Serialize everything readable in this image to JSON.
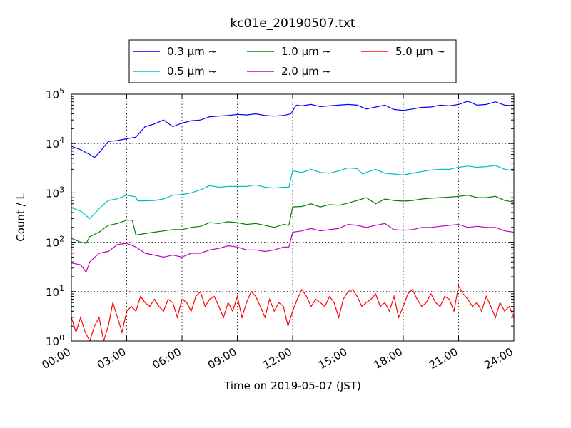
{
  "chart_data": {
    "type": "line",
    "title": "kc01e_20190507.txt",
    "xlabel": "Time on 2019-05-07 (JST)",
    "ylabel": "Count / L",
    "xlim_hours": [
      0,
      24
    ],
    "yscale": "log",
    "ylim": [
      1,
      100000
    ],
    "grid": true,
    "legend_placement": "top-center-above-plot",
    "x_ticks": [
      {
        "hour": 0,
        "label": "00:00"
      },
      {
        "hour": 3,
        "label": "03:00"
      },
      {
        "hour": 6,
        "label": "06:00"
      },
      {
        "hour": 9,
        "label": "09:00"
      },
      {
        "hour": 12,
        "label": "12:00"
      },
      {
        "hour": 15,
        "label": "15:00"
      },
      {
        "hour": 18,
        "label": "18:00"
      },
      {
        "hour": 21,
        "label": "21:00"
      },
      {
        "hour": 24,
        "label": "24:00"
      }
    ],
    "y_ticks": [
      {
        "value": 1,
        "base": "10",
        "exp": "0"
      },
      {
        "value": 10,
        "base": "10",
        "exp": "1"
      },
      {
        "value": 100,
        "base": "10",
        "exp": "2"
      },
      {
        "value": 1000,
        "base": "10",
        "exp": "3"
      },
      {
        "value": 10000,
        "base": "10",
        "exp": "4"
      },
      {
        "value": 100000,
        "base": "10",
        "exp": "5"
      }
    ],
    "series": [
      {
        "name": "0.3 μm ~",
        "color": "#0000ff",
        "points": [
          [
            0,
            8800
          ],
          [
            0.5,
            7500
          ],
          [
            1,
            6000
          ],
          [
            1.25,
            5200
          ],
          [
            1.5,
            6500
          ],
          [
            2,
            11000
          ],
          [
            2.5,
            11500
          ],
          [
            3,
            12500
          ],
          [
            3.5,
            13500
          ],
          [
            4,
            22000
          ],
          [
            4.5,
            25000
          ],
          [
            5,
            30000
          ],
          [
            5.5,
            22000
          ],
          [
            6,
            26000
          ],
          [
            6.5,
            29000
          ],
          [
            7,
            30000
          ],
          [
            7.5,
            35000
          ],
          [
            8,
            36000
          ],
          [
            8.5,
            37000
          ],
          [
            9,
            39000
          ],
          [
            9.5,
            38000
          ],
          [
            10,
            40000
          ],
          [
            10.5,
            37000
          ],
          [
            11,
            36000
          ],
          [
            11.5,
            37000
          ],
          [
            11.9,
            40000
          ],
          [
            12.2,
            60000
          ],
          [
            12.5,
            58000
          ],
          [
            13,
            62000
          ],
          [
            13.5,
            56000
          ],
          [
            14,
            58000
          ],
          [
            14.5,
            60000
          ],
          [
            15,
            62000
          ],
          [
            15.5,
            60000
          ],
          [
            16,
            50000
          ],
          [
            16.5,
            55000
          ],
          [
            17,
            60000
          ],
          [
            17.5,
            49000
          ],
          [
            18,
            47000
          ],
          [
            18.5,
            50000
          ],
          [
            19,
            54000
          ],
          [
            19.5,
            55000
          ],
          [
            20,
            60000
          ],
          [
            20.5,
            58000
          ],
          [
            21,
            62000
          ],
          [
            21.5,
            72000
          ],
          [
            22,
            60000
          ],
          [
            22.5,
            62000
          ],
          [
            23,
            70000
          ],
          [
            23.5,
            60000
          ],
          [
            24,
            58000
          ]
        ]
      },
      {
        "name": "0.5 μm ~",
        "color": "#00bfbf",
        "points": [
          [
            0,
            500
          ],
          [
            0.5,
            430
          ],
          [
            1,
            300
          ],
          [
            1.5,
            480
          ],
          [
            2,
            700
          ],
          [
            2.5,
            760
          ],
          [
            3,
            900
          ],
          [
            3.5,
            830
          ],
          [
            3.6,
            690
          ],
          [
            4,
            690
          ],
          [
            4.5,
            700
          ],
          [
            5,
            750
          ],
          [
            5.5,
            900
          ],
          [
            6,
            920
          ],
          [
            6.5,
            1000
          ],
          [
            7,
            1150
          ],
          [
            7.5,
            1400
          ],
          [
            8,
            1300
          ],
          [
            8.5,
            1350
          ],
          [
            9,
            1350
          ],
          [
            9.5,
            1350
          ],
          [
            10,
            1450
          ],
          [
            10.5,
            1300
          ],
          [
            11,
            1250
          ],
          [
            11.5,
            1300
          ],
          [
            11.8,
            1300
          ],
          [
            12,
            2800
          ],
          [
            12.5,
            2600
          ],
          [
            13,
            3000
          ],
          [
            13.5,
            2600
          ],
          [
            14,
            2500
          ],
          [
            14.5,
            2800
          ],
          [
            15,
            3200
          ],
          [
            15.5,
            3100
          ],
          [
            15.8,
            2400
          ],
          [
            16,
            2600
          ],
          [
            16.5,
            3000
          ],
          [
            17,
            2500
          ],
          [
            17.5,
            2400
          ],
          [
            18,
            2300
          ],
          [
            18.5,
            2500
          ],
          [
            19,
            2700
          ],
          [
            19.5,
            2900
          ],
          [
            20,
            3000
          ],
          [
            20.5,
            3000
          ],
          [
            21,
            3300
          ],
          [
            21.5,
            3500
          ],
          [
            22,
            3300
          ],
          [
            22.5,
            3400
          ],
          [
            23,
            3600
          ],
          [
            23.5,
            3000
          ],
          [
            24,
            2800
          ]
        ]
      },
      {
        "name": "1.0 μm ~",
        "color": "#008000",
        "points": [
          [
            0,
            120
          ],
          [
            0.5,
            100
          ],
          [
            0.8,
            95
          ],
          [
            1,
            130
          ],
          [
            1.5,
            160
          ],
          [
            2,
            220
          ],
          [
            2.5,
            240
          ],
          [
            3,
            280
          ],
          [
            3.3,
            280
          ],
          [
            3.5,
            140
          ],
          [
            4,
            150
          ],
          [
            4.5,
            160
          ],
          [
            5,
            170
          ],
          [
            5.5,
            180
          ],
          [
            6,
            180
          ],
          [
            6.5,
            200
          ],
          [
            7,
            210
          ],
          [
            7.5,
            250
          ],
          [
            8,
            240
          ],
          [
            8.5,
            260
          ],
          [
            9,
            250
          ],
          [
            9.5,
            230
          ],
          [
            10,
            240
          ],
          [
            10.5,
            220
          ],
          [
            11,
            200
          ],
          [
            11.5,
            230
          ],
          [
            11.8,
            220
          ],
          [
            12,
            520
          ],
          [
            12.5,
            530
          ],
          [
            13,
            600
          ],
          [
            13.5,
            520
          ],
          [
            14,
            580
          ],
          [
            14.5,
            560
          ],
          [
            15,
            620
          ],
          [
            15.5,
            700
          ],
          [
            16,
            800
          ],
          [
            16.5,
            600
          ],
          [
            17,
            750
          ],
          [
            17.5,
            700
          ],
          [
            18,
            680
          ],
          [
            18.5,
            700
          ],
          [
            19,
            750
          ],
          [
            19.5,
            780
          ],
          [
            20,
            800
          ],
          [
            20.5,
            820
          ],
          [
            21,
            850
          ],
          [
            21.5,
            900
          ],
          [
            22,
            800
          ],
          [
            22.5,
            800
          ],
          [
            23,
            850
          ],
          [
            23.5,
            700
          ],
          [
            24,
            650
          ]
        ]
      },
      {
        "name": "2.0 μm ~",
        "color": "#bf00bf",
        "points": [
          [
            0,
            38
          ],
          [
            0.5,
            35
          ],
          [
            0.8,
            25
          ],
          [
            1,
            40
          ],
          [
            1.5,
            60
          ],
          [
            2,
            65
          ],
          [
            2.5,
            90
          ],
          [
            3,
            95
          ],
          [
            3.5,
            80
          ],
          [
            4,
            60
          ],
          [
            4.5,
            55
          ],
          [
            5,
            50
          ],
          [
            5.5,
            55
          ],
          [
            6,
            50
          ],
          [
            6.5,
            60
          ],
          [
            7,
            60
          ],
          [
            7.5,
            70
          ],
          [
            8,
            75
          ],
          [
            8.5,
            85
          ],
          [
            9,
            80
          ],
          [
            9.5,
            70
          ],
          [
            10,
            70
          ],
          [
            10.5,
            65
          ],
          [
            11,
            70
          ],
          [
            11.5,
            80
          ],
          [
            11.8,
            80
          ],
          [
            12,
            160
          ],
          [
            12.5,
            170
          ],
          [
            13,
            190
          ],
          [
            13.5,
            170
          ],
          [
            14,
            180
          ],
          [
            14.5,
            190
          ],
          [
            15,
            230
          ],
          [
            15.5,
            220
          ],
          [
            16,
            200
          ],
          [
            16.5,
            220
          ],
          [
            17,
            240
          ],
          [
            17.5,
            180
          ],
          [
            18,
            175
          ],
          [
            18.5,
            180
          ],
          [
            19,
            200
          ],
          [
            19.5,
            200
          ],
          [
            20,
            210
          ],
          [
            20.5,
            220
          ],
          [
            21,
            230
          ],
          [
            21.5,
            200
          ],
          [
            22,
            210
          ],
          [
            22.5,
            200
          ],
          [
            23,
            200
          ],
          [
            23.5,
            170
          ],
          [
            24,
            160
          ]
        ]
      },
      {
        "name": "5.0 μm ~",
        "color": "#ff0000",
        "points": [
          [
            0,
            3
          ],
          [
            0.25,
            1.5
          ],
          [
            0.5,
            3
          ],
          [
            0.75,
            1.5
          ],
          [
            1,
            1
          ],
          [
            1.25,
            2
          ],
          [
            1.5,
            3
          ],
          [
            1.75,
            1
          ],
          [
            2,
            2
          ],
          [
            2.25,
            6
          ],
          [
            2.5,
            3
          ],
          [
            2.75,
            1.5
          ],
          [
            3,
            4
          ],
          [
            3.25,
            5
          ],
          [
            3.5,
            4
          ],
          [
            3.75,
            8
          ],
          [
            4,
            6
          ],
          [
            4.25,
            5
          ],
          [
            4.5,
            7
          ],
          [
            4.75,
            5
          ],
          [
            5,
            4
          ],
          [
            5.25,
            7
          ],
          [
            5.5,
            6
          ],
          [
            5.75,
            3
          ],
          [
            6,
            7
          ],
          [
            6.25,
            6
          ],
          [
            6.5,
            4
          ],
          [
            6.75,
            8
          ],
          [
            7,
            10
          ],
          [
            7.25,
            5
          ],
          [
            7.5,
            7
          ],
          [
            7.75,
            8
          ],
          [
            8,
            5
          ],
          [
            8.25,
            3
          ],
          [
            8.5,
            6
          ],
          [
            8.75,
            4
          ],
          [
            9,
            8
          ],
          [
            9.25,
            3
          ],
          [
            9.5,
            6
          ],
          [
            9.75,
            10
          ],
          [
            10,
            8
          ],
          [
            10.25,
            5
          ],
          [
            10.5,
            3
          ],
          [
            10.75,
            7
          ],
          [
            11,
            4
          ],
          [
            11.25,
            6
          ],
          [
            11.5,
            5
          ],
          [
            11.75,
            2
          ],
          [
            12,
            4
          ],
          [
            12.25,
            7
          ],
          [
            12.5,
            11
          ],
          [
            12.75,
            8
          ],
          [
            13,
            5
          ],
          [
            13.25,
            7
          ],
          [
            13.5,
            6
          ],
          [
            13.75,
            5
          ],
          [
            14,
            8
          ],
          [
            14.25,
            6
          ],
          [
            14.5,
            3
          ],
          [
            14.75,
            7
          ],
          [
            15,
            10
          ],
          [
            15.25,
            11
          ],
          [
            15.5,
            8
          ],
          [
            15.75,
            5
          ],
          [
            16,
            6
          ],
          [
            16.25,
            7
          ],
          [
            16.5,
            9
          ],
          [
            16.75,
            5
          ],
          [
            17,
            6
          ],
          [
            17.25,
            4
          ],
          [
            17.5,
            8
          ],
          [
            17.75,
            3
          ],
          [
            18,
            5
          ],
          [
            18.25,
            9
          ],
          [
            18.5,
            11
          ],
          [
            18.75,
            7
          ],
          [
            19,
            5
          ],
          [
            19.25,
            6
          ],
          [
            19.5,
            9
          ],
          [
            19.75,
            6
          ],
          [
            20,
            5
          ],
          [
            20.25,
            8
          ],
          [
            20.5,
            7
          ],
          [
            20.75,
            4
          ],
          [
            21,
            13
          ],
          [
            21.25,
            9
          ],
          [
            21.5,
            7
          ],
          [
            21.75,
            5
          ],
          [
            22,
            6
          ],
          [
            22.25,
            4
          ],
          [
            22.5,
            8
          ],
          [
            22.75,
            5
          ],
          [
            23,
            3
          ],
          [
            23.25,
            6
          ],
          [
            23.5,
            4
          ],
          [
            23.75,
            5
          ],
          [
            24,
            3
          ]
        ]
      }
    ]
  }
}
